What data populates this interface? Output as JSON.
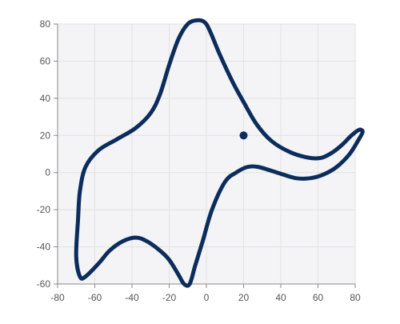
{
  "chart_data": {
    "type": "line",
    "title": "",
    "xlabel": "",
    "ylabel": "",
    "xlim": [
      -80,
      80
    ],
    "ylim": [
      -60,
      80
    ],
    "xticks": [
      "-80",
      "-60",
      "-40",
      "-20",
      "0",
      "20",
      "40",
      "60",
      "80"
    ],
    "yticks": [
      "80",
      "60",
      "40",
      "20",
      "0",
      "-20",
      "-40",
      "-60"
    ],
    "grid": true,
    "legend": "none",
    "plot_background": "#f4f4f6",
    "series": [
      {
        "color": "#0c2d5c",
        "closed": true,
        "points": [
          [
            -5,
            82
          ],
          [
            -10,
            80
          ],
          [
            -15,
            72
          ],
          [
            -20,
            58
          ],
          [
            -25,
            42
          ],
          [
            -30,
            32
          ],
          [
            -38,
            24
          ],
          [
            -48,
            18
          ],
          [
            -58,
            12
          ],
          [
            -65,
            3
          ],
          [
            -68,
            -10
          ],
          [
            -69,
            -25
          ],
          [
            -70,
            -45
          ],
          [
            -68,
            -56
          ],
          [
            -65,
            -56
          ],
          [
            -58,
            -49
          ],
          [
            -52,
            -42
          ],
          [
            -45,
            -37
          ],
          [
            -38,
            -35
          ],
          [
            -32,
            -37
          ],
          [
            -25,
            -42
          ],
          [
            -20,
            -47
          ],
          [
            -15,
            -55
          ],
          [
            -12,
            -60
          ],
          [
            -9,
            -60
          ],
          [
            -6,
            -50
          ],
          [
            -2,
            -37
          ],
          [
            3,
            -20
          ],
          [
            10,
            -5
          ],
          [
            16,
            0
          ],
          [
            22,
            3
          ],
          [
            28,
            3
          ],
          [
            38,
            0
          ],
          [
            48,
            -3
          ],
          [
            56,
            -3
          ],
          [
            63,
            -1
          ],
          [
            70,
            3
          ],
          [
            77,
            10
          ],
          [
            82,
            18
          ],
          [
            84,
            22
          ],
          [
            82,
            23
          ],
          [
            78,
            20
          ],
          [
            73,
            15
          ],
          [
            68,
            11
          ],
          [
            62,
            8
          ],
          [
            55,
            8
          ],
          [
            45,
            11
          ],
          [
            35,
            17
          ],
          [
            27,
            26
          ],
          [
            20,
            38
          ],
          [
            14,
            49
          ],
          [
            7,
            64
          ],
          [
            2,
            76
          ],
          [
            -1,
            81
          ]
        ]
      },
      {
        "color": "#0c2d5c",
        "marker": true,
        "points": [
          [
            20,
            20
          ]
        ]
      }
    ]
  }
}
